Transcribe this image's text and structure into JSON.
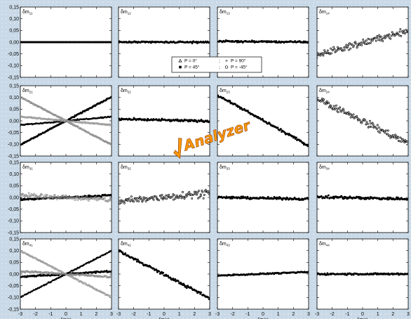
{
  "colors": {
    "page_background": "#c9d9e7",
    "panel_background": "#ffffff",
    "series_P0": "#000000",
    "series_P90": "#8a8a8a",
    "series_P45": "#000000",
    "series_Pm45": "#9a9a9a",
    "logo_fill": "#ff9a00",
    "logo_stroke": "#a0521a"
  },
  "logo": {
    "text": "Analyzer",
    "icon": "checkmark-icon"
  },
  "chart_data": {
    "type": "scatter",
    "grid": false,
    "layout": "4x4 matrix of panels",
    "shared_xlabel": "δP(°)",
    "x_ticks": [
      "-3",
      "-2",
      "-1",
      "0",
      "1",
      "2",
      "3"
    ],
    "y_ticks": [
      "0,15",
      "0,10",
      "0,05",
      "0,00",
      "-0,05",
      "-0,10",
      "-0,15"
    ],
    "xlim": [
      -3,
      3
    ],
    "ylim": [
      -0.15,
      0.15
    ],
    "legend": {
      "placement": "between row 1 and row 2, center",
      "entries": [
        {
          "label": "P = 0°",
          "marker": "open-triangle"
        },
        {
          "label": "P = 90°",
          "marker": "plus"
        },
        {
          "label": "P = 45°",
          "marker": "filled-square"
        },
        {
          "label": "P = -45°",
          "marker": "open-circle"
        }
      ],
      "separator": ";"
    },
    "panels": [
      {
        "id": "11",
        "title_main": "δm",
        "title_sub": "11",
        "series": [
          {
            "legend": "P = 0°",
            "slope": 0.0,
            "intercept": 0.0,
            "noise": 0.0
          }
        ]
      },
      {
        "id": "12",
        "title_main": "δm",
        "title_sub": "12",
        "series": [
          {
            "legend": "P = 0°",
            "slope": 0.0,
            "intercept": 0.0,
            "noise": 0.003
          }
        ]
      },
      {
        "id": "13",
        "title_main": "δm",
        "title_sub": "13",
        "series": [
          {
            "legend": "P = 0°",
            "slope": -0.0006,
            "intercept": 0.002,
            "noise": 0.003
          }
        ]
      },
      {
        "id": "14",
        "title_main": "δm",
        "title_sub": "14",
        "series": [
          {
            "legend": "P = 0°",
            "slope": 0.0175,
            "intercept": -0.003,
            "noise": 0.012
          }
        ]
      },
      {
        "id": "21",
        "title_main": "δm",
        "title_sub": "21",
        "series": [
          {
            "legend": "P = 0°",
            "slope": 0.034,
            "intercept": 0.0,
            "noise": 0.002
          },
          {
            "legend": "P = 90°",
            "slope": -0.034,
            "intercept": 0.0,
            "noise": 0.002
          },
          {
            "legend": "P = 45°",
            "slope": 0.006,
            "intercept": 0.0,
            "noise": 0.002
          },
          {
            "legend": "P = -45°",
            "slope": -0.006,
            "intercept": 0.0,
            "noise": 0.002
          }
        ]
      },
      {
        "id": "22",
        "title_main": "δm",
        "title_sub": "22",
        "series": [
          {
            "legend": "P = 0°",
            "slope": -0.0015,
            "intercept": 0.003,
            "noise": 0.004
          }
        ]
      },
      {
        "id": "23",
        "title_main": "δm",
        "title_sub": "23",
        "series": [
          {
            "legend": "P = 0°",
            "slope": -0.036,
            "intercept": 0.002,
            "noise": 0.004
          }
        ]
      },
      {
        "id": "24",
        "title_main": "δm",
        "title_sub": "24",
        "series": [
          {
            "legend": "P = 0°",
            "slope": -0.032,
            "intercept": 0.0,
            "noise": 0.012
          }
        ]
      },
      {
        "id": "31",
        "title_main": "δm",
        "title_sub": "31",
        "series": [
          {
            "legend": "P = 0°",
            "slope": 0.003,
            "intercept": 0.0,
            "noise": 0.003
          },
          {
            "legend": "P = 90°",
            "slope": -0.0035,
            "intercept": 0.0,
            "noise": 0.008
          }
        ]
      },
      {
        "id": "32",
        "title_main": "δm",
        "title_sub": "32",
        "series": [
          {
            "legend": "P = 0°",
            "slope": 0.0065,
            "intercept": 0.002,
            "noise": 0.014
          }
        ]
      },
      {
        "id": "33",
        "title_main": "δm",
        "title_sub": "33",
        "series": [
          {
            "legend": "P = 0°",
            "slope": -0.0012,
            "intercept": -0.003,
            "noise": 0.004
          }
        ]
      },
      {
        "id": "34",
        "title_main": "δm",
        "title_sub": "34",
        "series": [
          {
            "legend": "P = 0°",
            "slope": -0.0015,
            "intercept": -0.002,
            "noise": 0.005
          }
        ]
      },
      {
        "id": "41",
        "title_main": "δm",
        "title_sub": "41",
        "series": [
          {
            "legend": "P = 0°",
            "slope": 0.004,
            "intercept": 0.0,
            "noise": 0.003
          },
          {
            "legend": "P = 90°",
            "slope": -0.004,
            "intercept": 0.0,
            "noise": 0.003
          },
          {
            "legend": "P = 45°",
            "slope": 0.033,
            "intercept": 0.0,
            "noise": 0.002
          },
          {
            "legend": "P = -45°",
            "slope": -0.033,
            "intercept": 0.0,
            "noise": 0.002
          }
        ]
      },
      {
        "id": "42",
        "title_main": "δm",
        "title_sub": "42",
        "series": [
          {
            "legend": "P = 0°",
            "slope": -0.034,
            "intercept": -0.002,
            "noise": 0.005
          }
        ]
      },
      {
        "id": "43",
        "title_main": "δm",
        "title_sub": "43",
        "series": [
          {
            "legend": "P = 0°",
            "slope": 0.0025,
            "intercept": 0.001,
            "noise": 0.002
          }
        ]
      },
      {
        "id": "44",
        "title_main": "δm",
        "title_sub": "44",
        "series": [
          {
            "legend": "P = 0°",
            "slope": 0.0,
            "intercept": 0.0,
            "noise": 0.003
          }
        ]
      }
    ]
  }
}
